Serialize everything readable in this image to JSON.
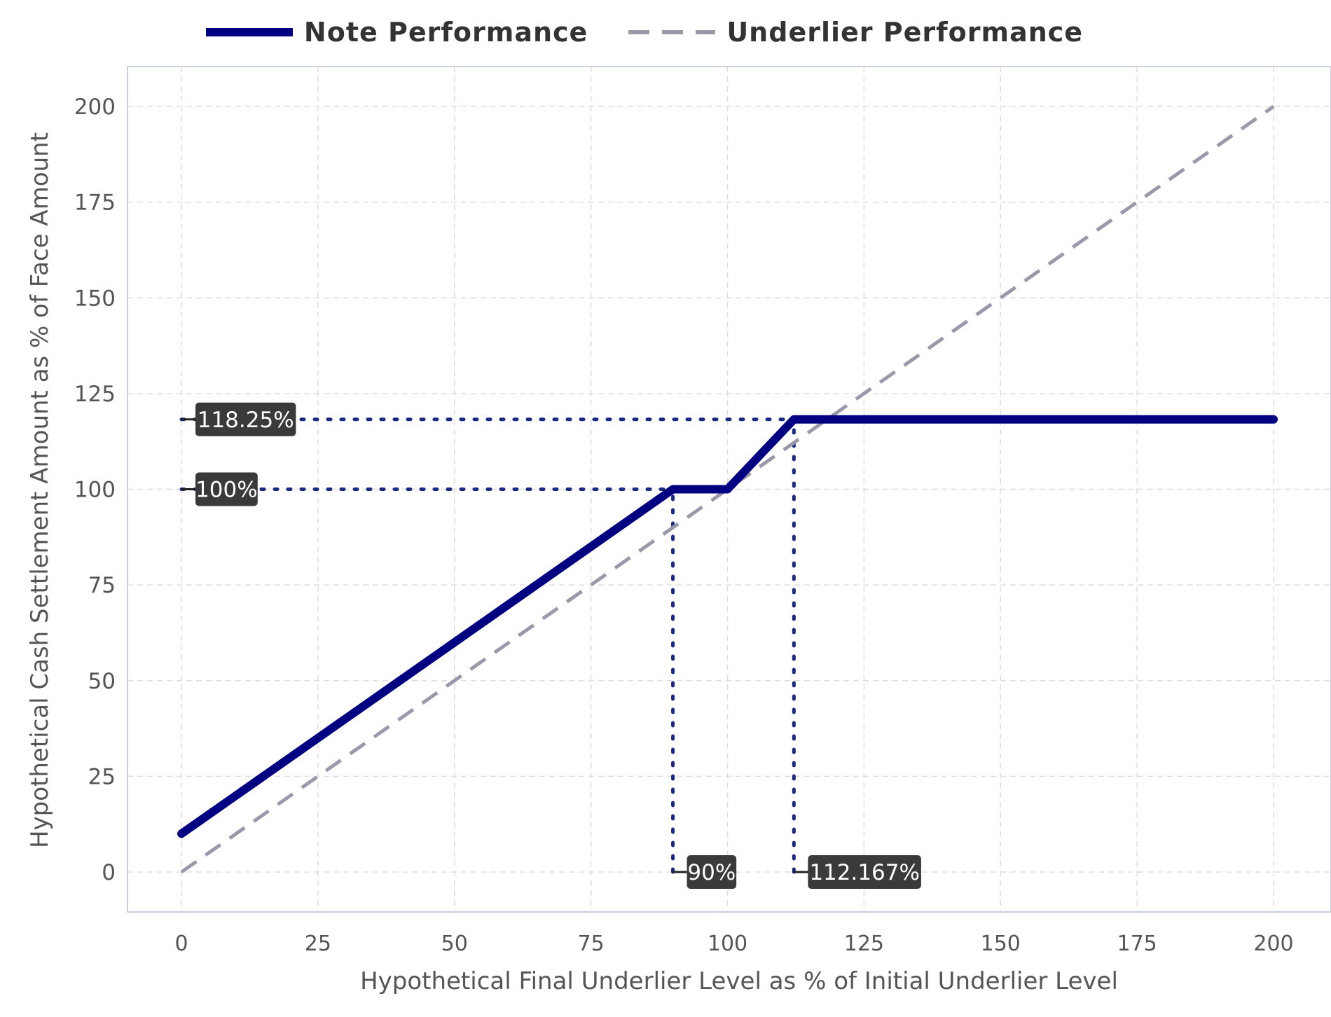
{
  "chart_data": {
    "type": "line",
    "xlabel": "Hypothetical Final Underlier Level as % of Initial Underlier Level",
    "ylabel": "Hypothetical Cash Settlement Amount as % of Face Amount",
    "xlim": [
      -10,
      210
    ],
    "ylim": [
      -10,
      210
    ],
    "xticks": [
      0,
      25,
      50,
      75,
      100,
      125,
      150,
      175,
      200
    ],
    "yticks": [
      0,
      25,
      50,
      75,
      100,
      125,
      150,
      175,
      200
    ],
    "grid": true,
    "legend_position": "top-center",
    "series": [
      {
        "name": "Note Performance",
        "color": "#000080",
        "style": "solid",
        "x": [
          0,
          90,
          100,
          112.167,
          200
        ],
        "y": [
          10,
          100,
          100,
          118.25,
          118.25
        ]
      },
      {
        "name": "Underlier Performance",
        "color": "#9999aa",
        "style": "dashed",
        "x": [
          0,
          200
        ],
        "y": [
          0,
          200
        ]
      }
    ],
    "annotations": [
      {
        "axis": "y",
        "value": 118.25,
        "label": "118.25%",
        "x_end": 112.167
      },
      {
        "axis": "y",
        "value": 100,
        "label": "100%",
        "x_end": 90
      },
      {
        "axis": "x",
        "value": 90,
        "label": "90%",
        "y_end": 100
      },
      {
        "axis": "x",
        "value": 112.167,
        "label": "112.167%",
        "y_end": 118.25
      }
    ]
  }
}
